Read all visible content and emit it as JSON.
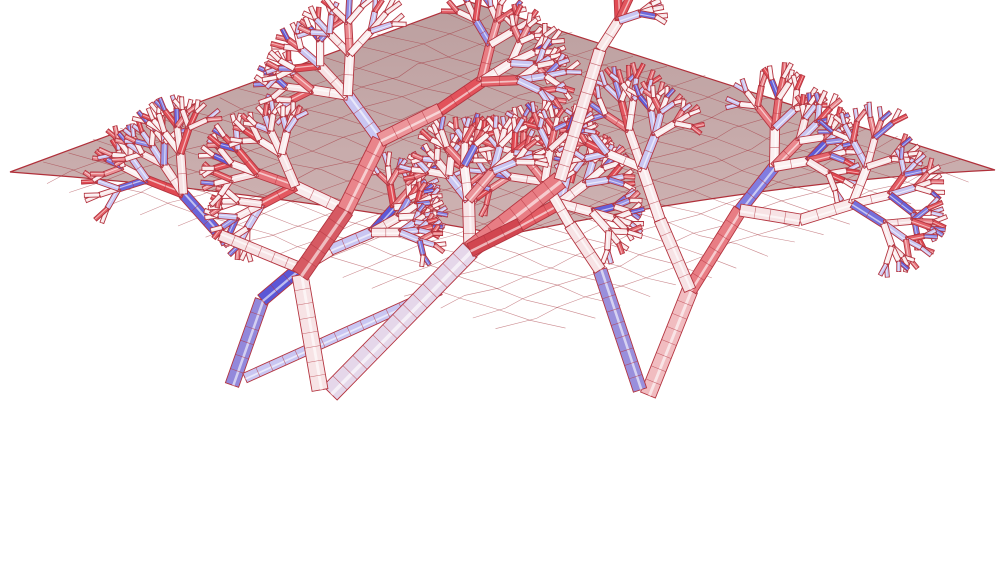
{
  "figure": {
    "subject": "branching-tree-column-structure-supporting-roof-plate",
    "render_style": "wireframe-with-stress-color-map",
    "colors": {
      "background": "#ffffff",
      "roof_fill": "#b89a9a",
      "roof_edge": "#b0303a",
      "mesh_line": "#a02a33",
      "member_light": "#f7e3e5",
      "member_tension": "#e0464f",
      "member_tension_strong": "#c81f2b",
      "member_compression": "#5b57d6",
      "member_compression_light": "#c9c6f2",
      "member_outline": "#b43540"
    },
    "trees": [
      {
        "name": "left-tree",
        "compression_bias": 0.45
      },
      {
        "name": "center-tree",
        "compression_bias": 0.25
      },
      {
        "name": "right-tree",
        "compression_bias": 0.4
      }
    ]
  }
}
